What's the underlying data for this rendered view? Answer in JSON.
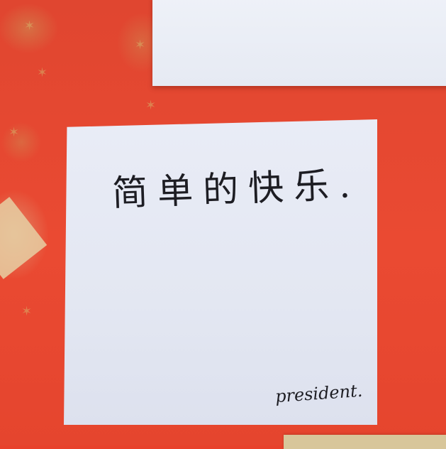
{
  "photo": {
    "wall_color": "#e8412b",
    "accent_color": "#d6b068"
  },
  "notes": {
    "main": {
      "handwriting": "简单的快乐.",
      "signature": "president."
    }
  }
}
